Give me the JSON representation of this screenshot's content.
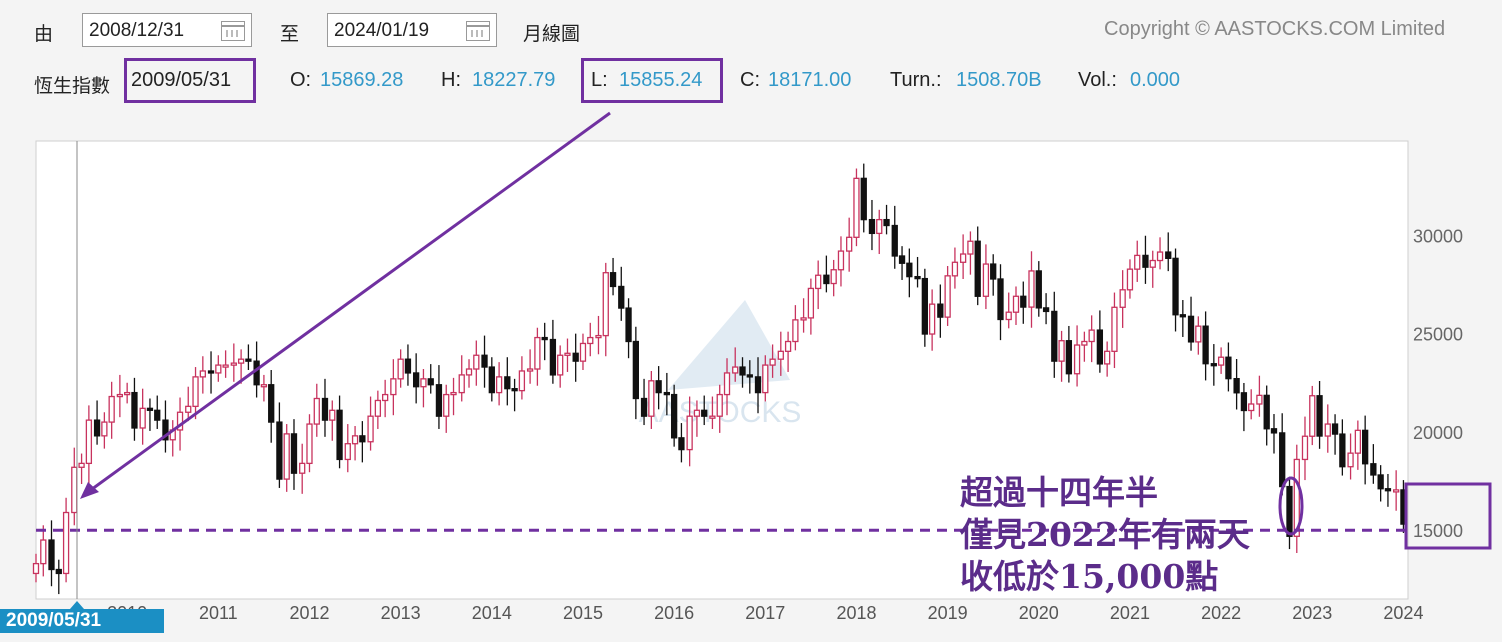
{
  "controls": {
    "from_label": "由",
    "from_date": "2008/12/31",
    "to_label": "至",
    "to_date": "2024/01/19",
    "chart_type": "月線圖",
    "copyright": "Copyright © AASTOCKS.COM Limited"
  },
  "quote": {
    "index_name": "恆生指數",
    "date": "2009/05/31",
    "open_label": "O:",
    "open": "15869.28",
    "high_label": "H:",
    "high": "18227.79",
    "low_label": "L:",
    "low": "15855.24",
    "close_label": "C:",
    "close": "18171.00",
    "turn_label": "Turn.:",
    "turn": "1508.70B",
    "vol_label": "Vol.:",
    "vol": "0.000"
  },
  "crosshair_date": "2009/05/31",
  "watermark": "AASTOCKS",
  "annotation": {
    "line1": "超過十四年半",
    "line2": "僅見2022年有兩天",
    "line3": "收低於15,000點"
  },
  "colors": {
    "up": "#c8335e",
    "down": "#111111",
    "highlight": "#7030a0",
    "value_text": "#3399c9",
    "date_tag": "#1b8fc4"
  },
  "chart_data": {
    "type": "candlestick",
    "title": "",
    "xlabel": "",
    "ylabel": "",
    "x_ticks": [
      "2010",
      "2011",
      "2012",
      "2013",
      "2014",
      "2015",
      "2016",
      "2017",
      "2018",
      "2019",
      "2020",
      "2021",
      "2022",
      "2023",
      "2024"
    ],
    "y_ticks": [
      15000,
      20000,
      25000,
      30000
    ],
    "ylim": [
      11500,
      34800
    ],
    "xlim": [
      2009.0,
      2024.05
    ],
    "reference_line": 15000,
    "close_series": [
      [
        2009.0,
        13300
      ],
      [
        2009.08,
        14500
      ],
      [
        2009.17,
        13000
      ],
      [
        2009.25,
        12800
      ],
      [
        2009.33,
        15900
      ],
      [
        2009.42,
        18200
      ],
      [
        2009.5,
        18400
      ],
      [
        2009.58,
        20600
      ],
      [
        2009.67,
        19800
      ],
      [
        2009.75,
        20500
      ],
      [
        2009.83,
        21800
      ],
      [
        2009.92,
        21900
      ],
      [
        2010.0,
        22000
      ],
      [
        2010.08,
        20200
      ],
      [
        2010.17,
        21200
      ],
      [
        2010.25,
        21100
      ],
      [
        2010.33,
        20600
      ],
      [
        2010.42,
        19600
      ],
      [
        2010.5,
        20100
      ],
      [
        2010.58,
        21000
      ],
      [
        2010.67,
        21300
      ],
      [
        2010.75,
        22800
      ],
      [
        2010.83,
        23100
      ],
      [
        2010.92,
        23000
      ],
      [
        2011.0,
        23400
      ],
      [
        2011.08,
        23400
      ],
      [
        2011.17,
        23500
      ],
      [
        2011.25,
        23700
      ],
      [
        2011.33,
        23600
      ],
      [
        2011.42,
        22400
      ],
      [
        2011.5,
        22400
      ],
      [
        2011.58,
        20500
      ],
      [
        2011.67,
        17600
      ],
      [
        2011.75,
        19900
      ],
      [
        2011.83,
        17900
      ],
      [
        2011.92,
        18400
      ],
      [
        2012.0,
        20400
      ],
      [
        2012.08,
        21700
      ],
      [
        2012.17,
        20600
      ],
      [
        2012.25,
        21100
      ],
      [
        2012.33,
        18600
      ],
      [
        2012.42,
        19400
      ],
      [
        2012.5,
        19800
      ],
      [
        2012.58,
        19500
      ],
      [
        2012.67,
        20800
      ],
      [
        2012.75,
        21600
      ],
      [
        2012.83,
        21900
      ],
      [
        2012.92,
        22700
      ],
      [
        2013.0,
        23700
      ],
      [
        2013.08,
        23000
      ],
      [
        2013.17,
        22300
      ],
      [
        2013.25,
        22700
      ],
      [
        2013.33,
        22400
      ],
      [
        2013.42,
        20800
      ],
      [
        2013.5,
        21900
      ],
      [
        2013.58,
        22000
      ],
      [
        2013.67,
        22900
      ],
      [
        2013.75,
        23200
      ],
      [
        2013.83,
        23900
      ],
      [
        2013.92,
        23300
      ],
      [
        2014.0,
        22000
      ],
      [
        2014.08,
        22800
      ],
      [
        2014.17,
        22200
      ],
      [
        2014.25,
        22100
      ],
      [
        2014.33,
        23100
      ],
      [
        2014.42,
        23200
      ],
      [
        2014.5,
        24800
      ],
      [
        2014.58,
        24700
      ],
      [
        2014.67,
        22900
      ],
      [
        2014.75,
        23900
      ],
      [
        2014.83,
        24000
      ],
      [
        2014.92,
        23600
      ],
      [
        2015.0,
        24500
      ],
      [
        2015.08,
        24800
      ],
      [
        2015.17,
        24900
      ],
      [
        2015.25,
        28100
      ],
      [
        2015.33,
        27400
      ],
      [
        2015.42,
        26300
      ],
      [
        2015.5,
        24600
      ],
      [
        2015.58,
        21700
      ],
      [
        2015.67,
        20800
      ],
      [
        2015.75,
        22600
      ],
      [
        2015.83,
        22000
      ],
      [
        2015.92,
        21900
      ],
      [
        2016.0,
        19700
      ],
      [
        2016.08,
        19100
      ],
      [
        2016.17,
        20800
      ],
      [
        2016.25,
        21100
      ],
      [
        2016.33,
        20800
      ],
      [
        2016.42,
        20800
      ],
      [
        2016.5,
        21900
      ],
      [
        2016.58,
        23000
      ],
      [
        2016.67,
        23300
      ],
      [
        2016.75,
        22900
      ],
      [
        2016.83,
        22800
      ],
      [
        2016.92,
        22000
      ],
      [
        2017.0,
        23400
      ],
      [
        2017.08,
        23700
      ],
      [
        2017.17,
        24100
      ],
      [
        2017.25,
        24600
      ],
      [
        2017.33,
        25700
      ],
      [
        2017.42,
        25800
      ],
      [
        2017.5,
        27300
      ],
      [
        2017.58,
        27970
      ],
      [
        2017.67,
        27550
      ],
      [
        2017.75,
        28250
      ],
      [
        2017.83,
        29200
      ],
      [
        2017.92,
        29900
      ],
      [
        2018.0,
        32900
      ],
      [
        2018.08,
        30800
      ],
      [
        2018.17,
        30100
      ],
      [
        2018.25,
        30800
      ],
      [
        2018.33,
        30500
      ],
      [
        2018.42,
        28950
      ],
      [
        2018.5,
        28580
      ],
      [
        2018.58,
        27900
      ],
      [
        2018.67,
        27800
      ],
      [
        2018.75,
        24980
      ],
      [
        2018.83,
        26500
      ],
      [
        2018.92,
        25840
      ],
      [
        2019.0,
        27940
      ],
      [
        2019.08,
        28630
      ],
      [
        2019.17,
        29050
      ],
      [
        2019.25,
        29700
      ],
      [
        2019.33,
        26900
      ],
      [
        2019.42,
        28540
      ],
      [
        2019.5,
        27780
      ],
      [
        2019.58,
        25720
      ],
      [
        2019.67,
        26090
      ],
      [
        2019.75,
        26900
      ],
      [
        2019.83,
        26350
      ],
      [
        2019.92,
        28190
      ],
      [
        2020.0,
        26310
      ],
      [
        2020.08,
        26130
      ],
      [
        2020.17,
        23600
      ],
      [
        2020.25,
        24640
      ],
      [
        2020.33,
        22960
      ],
      [
        2020.42,
        24420
      ],
      [
        2020.5,
        24600
      ],
      [
        2020.58,
        25180
      ],
      [
        2020.67,
        23460
      ],
      [
        2020.75,
        24100
      ],
      [
        2020.83,
        26340
      ],
      [
        2020.92,
        27230
      ],
      [
        2021.0,
        28280
      ],
      [
        2021.08,
        28980
      ],
      [
        2021.17,
        28380
      ],
      [
        2021.25,
        28720
      ],
      [
        2021.33,
        29150
      ],
      [
        2021.42,
        28830
      ],
      [
        2021.5,
        25960
      ],
      [
        2021.58,
        25880
      ],
      [
        2021.67,
        24580
      ],
      [
        2021.75,
        25380
      ],
      [
        2021.83,
        23470
      ],
      [
        2021.92,
        23400
      ],
      [
        2022.0,
        23800
      ],
      [
        2022.08,
        22710
      ],
      [
        2022.17,
        21990
      ],
      [
        2022.25,
        21090
      ],
      [
        2022.33,
        21420
      ],
      [
        2022.42,
        21860
      ],
      [
        2022.5,
        20160
      ],
      [
        2022.58,
        19950
      ],
      [
        2022.67,
        17220
      ],
      [
        2022.75,
        14690
      ],
      [
        2022.83,
        18600
      ],
      [
        2022.92,
        19780
      ],
      [
        2023.0,
        21840
      ],
      [
        2023.08,
        19790
      ],
      [
        2023.17,
        20400
      ],
      [
        2023.25,
        19890
      ],
      [
        2023.33,
        18230
      ],
      [
        2023.42,
        18920
      ],
      [
        2023.5,
        20080
      ],
      [
        2023.58,
        18380
      ],
      [
        2023.67,
        17810
      ],
      [
        2023.75,
        17110
      ],
      [
        2023.83,
        17040
      ],
      [
        2023.92,
        17050
      ],
      [
        2024.0,
        15310
      ]
    ]
  }
}
